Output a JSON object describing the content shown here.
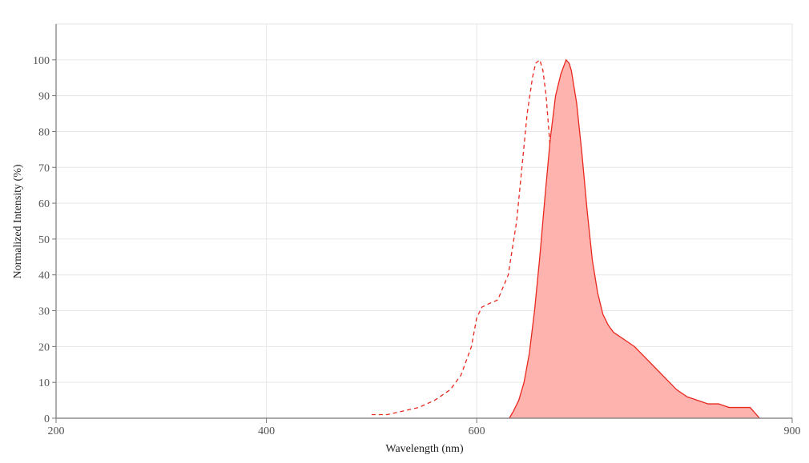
{
  "chart_data": {
    "type": "area",
    "title": "",
    "xlabel": "Wavelength (nm)",
    "ylabel": "Normalized Intensity (%)",
    "xlim": [
      200,
      900
    ],
    "ylim": [
      0,
      110
    ],
    "x_ticks": [
      200,
      400,
      600,
      900
    ],
    "x_tick_labels": [
      "200",
      "400",
      "600",
      "900"
    ],
    "y_ticks": [
      0,
      10,
      20,
      30,
      40,
      50,
      60,
      70,
      80,
      90,
      100
    ],
    "y_tick_labels": [
      "0",
      "10",
      "20",
      "30",
      "40",
      "50",
      "60",
      "70",
      "80",
      "90",
      "100"
    ],
    "grid": true,
    "legend": "none",
    "colors": {
      "line": "#e8281e",
      "fill": "#ffb3ae",
      "grid": "#e6e6e6",
      "axis": "#777777"
    },
    "series": [
      {
        "style": "dashed",
        "filled": false,
        "x": [
          500,
          515,
          530,
          545,
          560,
          575,
          585,
          595,
          600,
          605,
          612,
          620,
          630,
          638,
          643,
          648,
          653,
          656,
          660,
          663,
          666,
          670,
          675,
          680,
          685,
          690,
          695,
          700,
          705,
          710,
          715,
          720,
          724
        ],
        "y": [
          1,
          1,
          2,
          3,
          5,
          8,
          12,
          20,
          28,
          31,
          32,
          33,
          40,
          55,
          70,
          85,
          95,
          99,
          100,
          97,
          90,
          75,
          52,
          30,
          16,
          10,
          7,
          5,
          4,
          3,
          2,
          1,
          0
        ]
      },
      {
        "style": "solid",
        "filled": true,
        "x": [
          631,
          635,
          640,
          645,
          650,
          655,
          660,
          665,
          670,
          675,
          680,
          685,
          688,
          690,
          695,
          700,
          705,
          710,
          715,
          720,
          725,
          730,
          735,
          740,
          745,
          750,
          760,
          770,
          780,
          790,
          800,
          810,
          820,
          830,
          840,
          850,
          860,
          869
        ],
        "y": [
          0,
          2,
          5,
          10,
          18,
          30,
          45,
          62,
          78,
          90,
          96,
          100,
          99,
          97,
          88,
          74,
          58,
          44,
          35,
          29,
          26,
          24,
          23,
          22,
          21,
          20,
          17,
          14,
          11,
          8,
          6,
          5,
          4,
          4,
          3,
          3,
          3,
          0
        ]
      }
    ]
  }
}
